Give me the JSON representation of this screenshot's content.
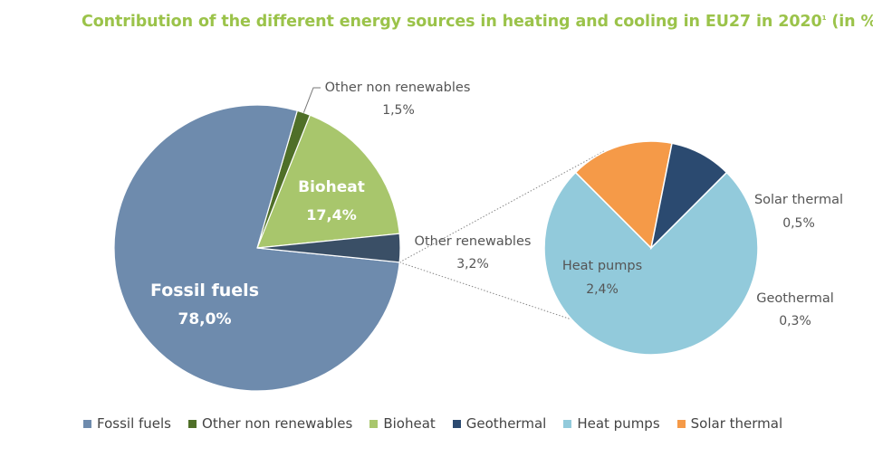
{
  "title": {
    "text": "Contribution of the different energy sources in heating and cooling in EU27 in 2020",
    "note_marker": "1",
    "unit": "(in %)"
  },
  "chart_data": [
    {
      "type": "pie",
      "slices": [
        {
          "label": "Fossil fuels",
          "value": 78.0,
          "value_label": "78,0%",
          "color": "#6e8bad"
        },
        {
          "label": "Other non renewables",
          "value": 1.5,
          "value_label": "1,5%",
          "color": "#4f6f28"
        },
        {
          "label": "Bioheat",
          "value": 17.4,
          "value_label": "17,4%",
          "color": "#a8c66c"
        },
        {
          "label": "Other renewables",
          "value": 3.2,
          "value_label": "3,2%",
          "color": "#3a4f66"
        }
      ]
    },
    {
      "type": "pie",
      "slices": [
        {
          "label": "Heat pumps",
          "value": 2.4,
          "value_label": "2,4%",
          "color": "#92cadb"
        },
        {
          "label": "Solar thermal",
          "value": 0.5,
          "value_label": "0,5%",
          "color": "#f59a48"
        },
        {
          "label": "Geothermal",
          "value": 0.3,
          "value_label": "0,3%",
          "color": "#2b4a70"
        }
      ]
    }
  ],
  "legend": [
    {
      "label": "Fossil fuels",
      "color": "#6e8bad"
    },
    {
      "label": "Other non renewables",
      "color": "#4f6f28"
    },
    {
      "label": "Bioheat",
      "color": "#a8c66c"
    },
    {
      "label": "Geothermal",
      "color": "#2b4a70"
    },
    {
      "label": "Heat pumps",
      "color": "#92cadb"
    },
    {
      "label": "Solar thermal",
      "color": "#f59a48"
    }
  ]
}
